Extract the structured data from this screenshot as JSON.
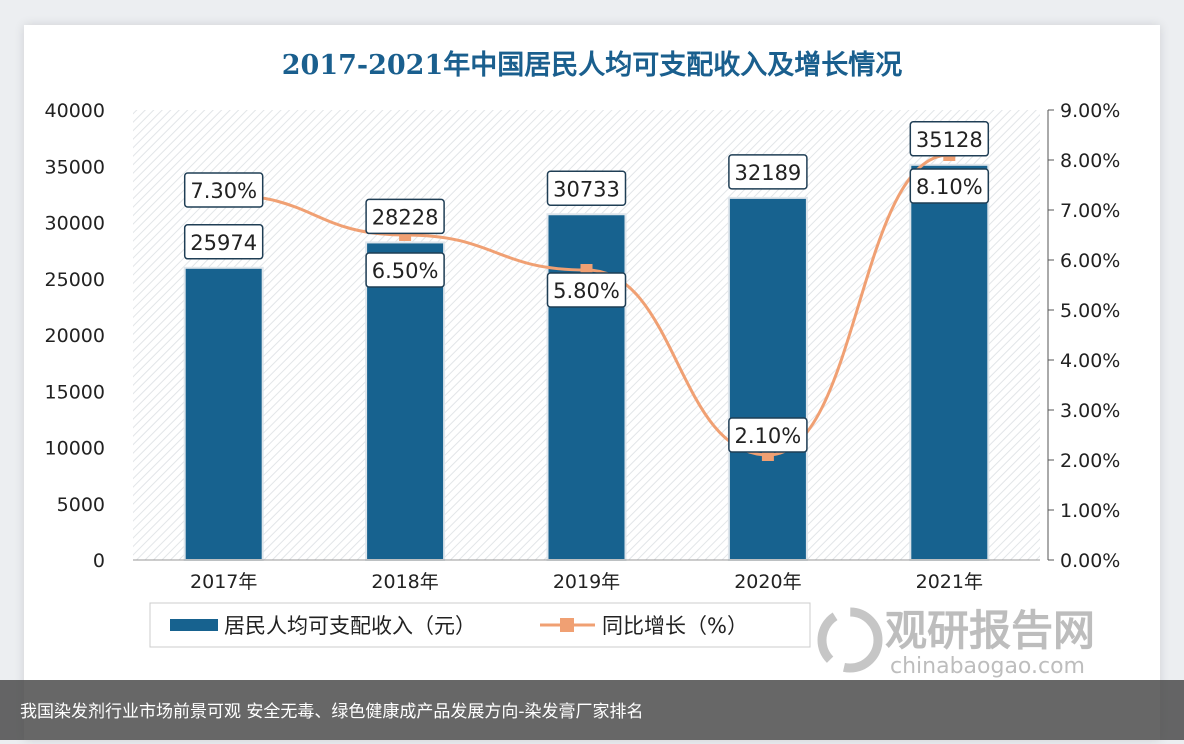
{
  "chart_data": {
    "type": "bar",
    "title": "2017-2021年中国居民人均可支配收入及增长情况",
    "categories": [
      "2017年",
      "2018年",
      "2019年",
      "2020年",
      "2021年"
    ],
    "series": [
      {
        "name": "居民人均可支配收入（元）",
        "type": "bar",
        "axis": "left",
        "values": [
          25974,
          28228,
          30733,
          32189,
          35128
        ],
        "labels": [
          "25974",
          "28228",
          "30733",
          "32189",
          "35128"
        ],
        "color": "#17628f"
      },
      {
        "name": "同比增长（%）",
        "type": "line",
        "axis": "right",
        "values": [
          7.3,
          6.5,
          5.8,
          2.1,
          8.1
        ],
        "labels": [
          "7.30%",
          "6.50%",
          "5.80%",
          "2.10%",
          "8.10%"
        ],
        "color": "#f0a073"
      }
    ],
    "ylim": [
      0,
      40000
    ],
    "yticks": [
      "0",
      "5000",
      "10000",
      "15000",
      "20000",
      "25000",
      "30000",
      "35000",
      "40000"
    ],
    "y2lim": [
      0,
      9
    ],
    "y2ticks": [
      "0.00%",
      "1.00%",
      "2.00%",
      "3.00%",
      "4.00%",
      "5.00%",
      "6.00%",
      "7.00%",
      "8.00%",
      "9.00%"
    ],
    "legend": "bottom"
  },
  "watermark": {
    "name": "观研报告网",
    "url": "chinabaogao.com"
  },
  "caption": "我国染发剂行业市场前景可观 安全无毒、绿色健康成产品发展方向-染发膏厂家排名"
}
